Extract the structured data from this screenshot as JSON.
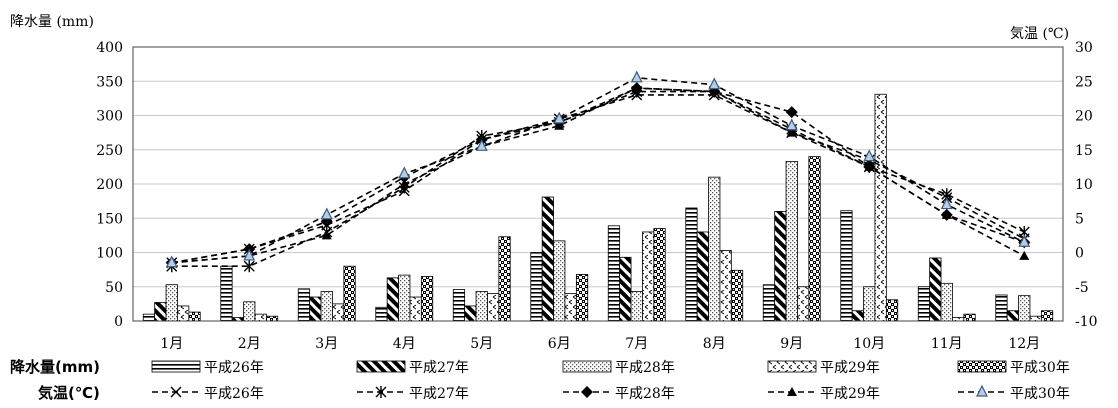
{
  "chart_data": {
    "type": "bar+line",
    "left_axis_title": "降水量 (mm)",
    "right_axis_title": "気温 (℃)",
    "categories": [
      "1月",
      "2月",
      "3月",
      "4月",
      "5月",
      "6月",
      "7月",
      "8月",
      "9月",
      "10月",
      "11月",
      "12月"
    ],
    "y_left": {
      "min": 0,
      "max": 400,
      "step": 50,
      "ticks": [
        "0",
        "50",
        "100",
        "150",
        "200",
        "250",
        "300",
        "350",
        "400"
      ]
    },
    "y_right": {
      "min": -10,
      "max": 30,
      "step": 5,
      "ticks": [
        "-10",
        "-5",
        "0",
        "5",
        "10",
        "15",
        "20",
        "25",
        "30"
      ]
    },
    "precip_series": [
      {
        "name": "平成26年",
        "pattern": "hstripe",
        "values": [
          10,
          80,
          47,
          20,
          46,
          100,
          139,
          165,
          53,
          161,
          50,
          38
        ]
      },
      {
        "name": "平成27年",
        "pattern": "diag",
        "values": [
          27,
          5,
          35,
          63,
          22,
          181,
          93,
          130,
          160,
          15,
          92,
          15
        ]
      },
      {
        "name": "平成28年",
        "pattern": "dots",
        "values": [
          53,
          28,
          43,
          67,
          43,
          117,
          43,
          210,
          233,
          50,
          55,
          37
        ]
      },
      {
        "name": "平成29年",
        "pattern": "wave",
        "values": [
          22,
          10,
          25,
          35,
          40,
          40,
          130,
          103,
          50,
          331,
          5,
          7
        ]
      },
      {
        "name": "平成30年",
        "pattern": "checker",
        "values": [
          13,
          7,
          80,
          65,
          123,
          68,
          135,
          74,
          240,
          31,
          10,
          15
        ]
      }
    ],
    "temp_series": [
      {
        "name": "平成26年",
        "marker": "x",
        "values": [
          -1.5,
          0.5,
          4.0,
          9.0,
          16.5,
          19.5,
          23.0,
          23.0,
          17.5,
          13.5,
          8.0,
          2.0
        ]
      },
      {
        "name": "平成27年",
        "marker": "star",
        "values": [
          -2.0,
          -2.0,
          3.0,
          9.5,
          17.0,
          19.0,
          23.5,
          23.5,
          18.0,
          12.5,
          8.5,
          3.0
        ]
      },
      {
        "name": "平成28年",
        "marker": "diamond",
        "values": [
          -1.5,
          0.5,
          4.5,
          11.0,
          16.5,
          19.0,
          24.0,
          23.5,
          20.5,
          12.5,
          5.5,
          1.5
        ]
      },
      {
        "name": "平成29年",
        "marker": "triangle",
        "values": [
          -1.5,
          -0.5,
          2.5,
          10.0,
          15.5,
          18.5,
          24.0,
          23.5,
          17.5,
          12.5,
          5.5,
          -0.5
        ]
      },
      {
        "name": "平成30年",
        "marker": "triangle-open",
        "values": [
          -1.5,
          -0.5,
          5.5,
          11.5,
          15.5,
          19.5,
          25.5,
          24.5,
          18.5,
          14.0,
          7.0,
          1.5
        ]
      }
    ],
    "legend": {
      "precip_heading": "降水量(mm)",
      "temp_heading": "気温(℃)",
      "placement": "bottom"
    },
    "grid": true
  }
}
